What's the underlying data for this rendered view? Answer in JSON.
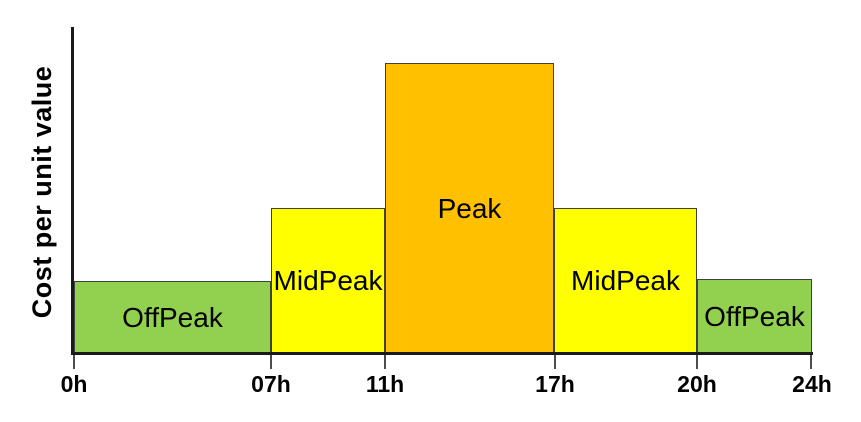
{
  "chart_data": {
    "type": "bar",
    "title": "",
    "xlabel": "",
    "ylabel": "Cost per unit value",
    "x_ticks": [
      "0h",
      "07h",
      "11h",
      "17h",
      "20h",
      "24h"
    ],
    "categories": [
      "0h-07h",
      "07h-11h",
      "11h-17h",
      "17h-20h",
      "20h-24h"
    ],
    "values": [
      1,
      2,
      4,
      2,
      1
    ],
    "grid": "off",
    "legend": "none",
    "axis_color": "#1A1A1A",
    "bar_border_color": "#404040",
    "segments": [
      {
        "label": "OffPeak",
        "start": "0h",
        "end": "07h",
        "relative_cost": 1,
        "color": "#92D050"
      },
      {
        "label": "MidPeak",
        "start": "07h",
        "end": "11h",
        "relative_cost": 2,
        "color": "#FFFF00"
      },
      {
        "label": "Peak",
        "start": "11h",
        "end": "17h",
        "relative_cost": 4,
        "color": "#FFC000"
      },
      {
        "label": "MidPeak",
        "start": "17h",
        "end": "20h",
        "relative_cost": 2,
        "color": "#FFFF00"
      },
      {
        "label": "OffPeak",
        "start": "20h",
        "end": "24h",
        "relative_cost": 1,
        "color": "#92D050"
      }
    ]
  }
}
